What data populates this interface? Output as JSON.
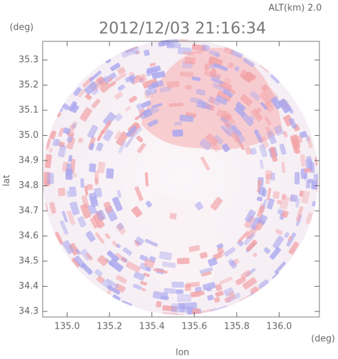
{
  "chart_data": {
    "type": "map",
    "title": "2012/12/03 21:16:34",
    "annotation": "ALT(km) 2.0",
    "xlabel": "lon",
    "ylabel": "lat",
    "x_unit": "(deg)",
    "y_unit": "(deg)",
    "xlim": [
      134.885,
      136.19
    ],
    "ylim": [
      34.278,
      35.374
    ],
    "xticks": [
      {
        "value": 135.0,
        "label": "135.0"
      },
      135.2,
      135.4,
      135.6,
      135.8,
      {
        "value": 136.0,
        "label": "136.0"
      }
    ],
    "yticks": [
      34.3,
      34.4,
      34.5,
      34.6,
      34.7,
      34.8,
      34.9,
      {
        "value": 35.0,
        "label": "35.0"
      },
      35.1,
      35.2,
      35.3
    ]
  }
}
